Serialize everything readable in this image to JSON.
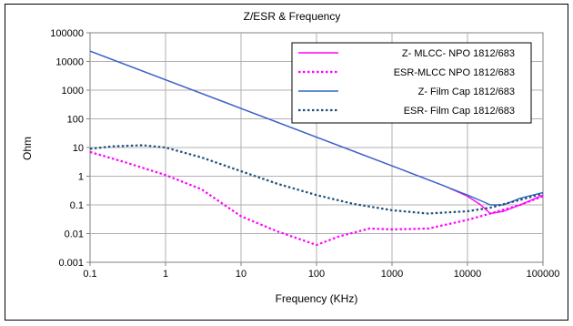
{
  "chart_data": {
    "type": "line",
    "title": "Z/ESR & Frequency",
    "xlabel": "Frequency (KHz)",
    "ylabel": "Ohm",
    "x_scale": "log",
    "y_scale": "log",
    "xlim": [
      0.1,
      100000
    ],
    "ylim": [
      0.001,
      100000
    ],
    "x_ticks": [
      "0.1",
      "1",
      "10",
      "100",
      "1000",
      "10000",
      "100000"
    ],
    "y_ticks": [
      "0.001",
      "0.01",
      "0.1",
      "1",
      "10",
      "100",
      "1000",
      "10000",
      "100000"
    ],
    "grid": true,
    "legend_position": "top-right",
    "series": [
      {
        "name": "Z- MLCC- NPO 1812/683",
        "color": "#ff00ff",
        "dash": "solid",
        "x": [
          0.1,
          1,
          10,
          100,
          1000,
          5000,
          10000,
          15000,
          20000,
          30000,
          50000,
          100000
        ],
        "y": [
          23000,
          2300,
          230,
          23,
          2.3,
          0.45,
          0.2,
          0.1,
          0.05,
          0.06,
          0.1,
          0.22
        ]
      },
      {
        "name": "ESR-MLCC NPO 1812/683",
        "color": "#ff00ff",
        "dash": "dotted",
        "x": [
          0.1,
          0.3,
          1,
          3,
          10,
          30,
          100,
          200,
          500,
          1000,
          3000,
          10000,
          20000,
          50000,
          100000
        ],
        "y": [
          7,
          3,
          1.1,
          0.35,
          0.04,
          0.012,
          0.004,
          0.008,
          0.015,
          0.014,
          0.015,
          0.03,
          0.05,
          0.1,
          0.2
        ]
      },
      {
        "name": "Z- Film Cap 1812/683",
        "color": "#2b6cc4",
        "dash": "solid",
        "x": [
          0.1,
          1,
          10,
          100,
          1000,
          5000,
          10000,
          15000,
          20000,
          30000,
          50000,
          100000
        ],
        "y": [
          23000,
          2300,
          230,
          23,
          2.3,
          0.45,
          0.22,
          0.14,
          0.1,
          0.1,
          0.17,
          0.27
        ]
      },
      {
        "name": "ESR- Film Cap 1812/683",
        "color": "#1f4e79",
        "dash": "dotted",
        "x": [
          0.1,
          0.2,
          0.5,
          1,
          3,
          10,
          30,
          100,
          300,
          1000,
          3000,
          10000,
          20000,
          50000,
          100000
        ],
        "y": [
          9,
          11,
          12,
          10,
          4.5,
          1.5,
          0.55,
          0.22,
          0.11,
          0.065,
          0.05,
          0.06,
          0.08,
          0.15,
          0.25
        ]
      }
    ]
  }
}
